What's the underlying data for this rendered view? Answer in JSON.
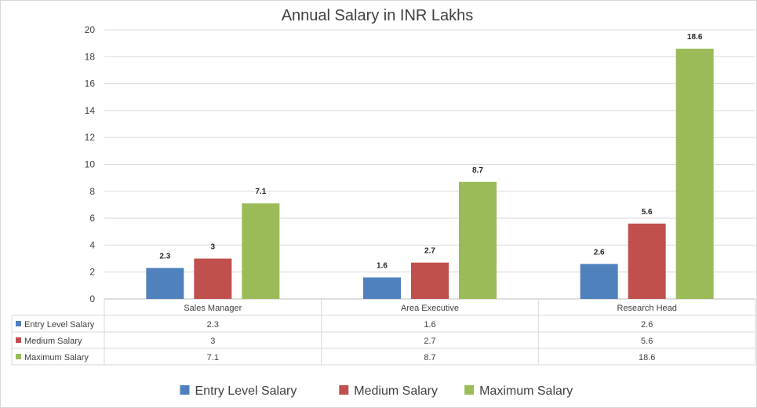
{
  "chart_data": {
    "type": "bar",
    "title": "Annual Salary in INR Lakhs",
    "xlabel": "",
    "ylabel": "",
    "ylim": [
      0,
      20
    ],
    "yticks": [
      0,
      2,
      4,
      6,
      8,
      10,
      12,
      14,
      16,
      18,
      20
    ],
    "grid": true,
    "legend_position": "bottom",
    "data_table": true,
    "categories": [
      "Sales Manager",
      "Area Executive",
      "Research Head"
    ],
    "series": [
      {
        "name": "Entry Level Salary",
        "color": "#4f81bd",
        "values": [
          2.3,
          1.6,
          2.6
        ]
      },
      {
        "name": "Medium Salary",
        "color": "#c0504d",
        "values": [
          3,
          2.7,
          5.6
        ]
      },
      {
        "name": "Maximum Salary",
        "color": "#9bbb59",
        "values": [
          7.1,
          8.7,
          18.6
        ]
      }
    ]
  }
}
